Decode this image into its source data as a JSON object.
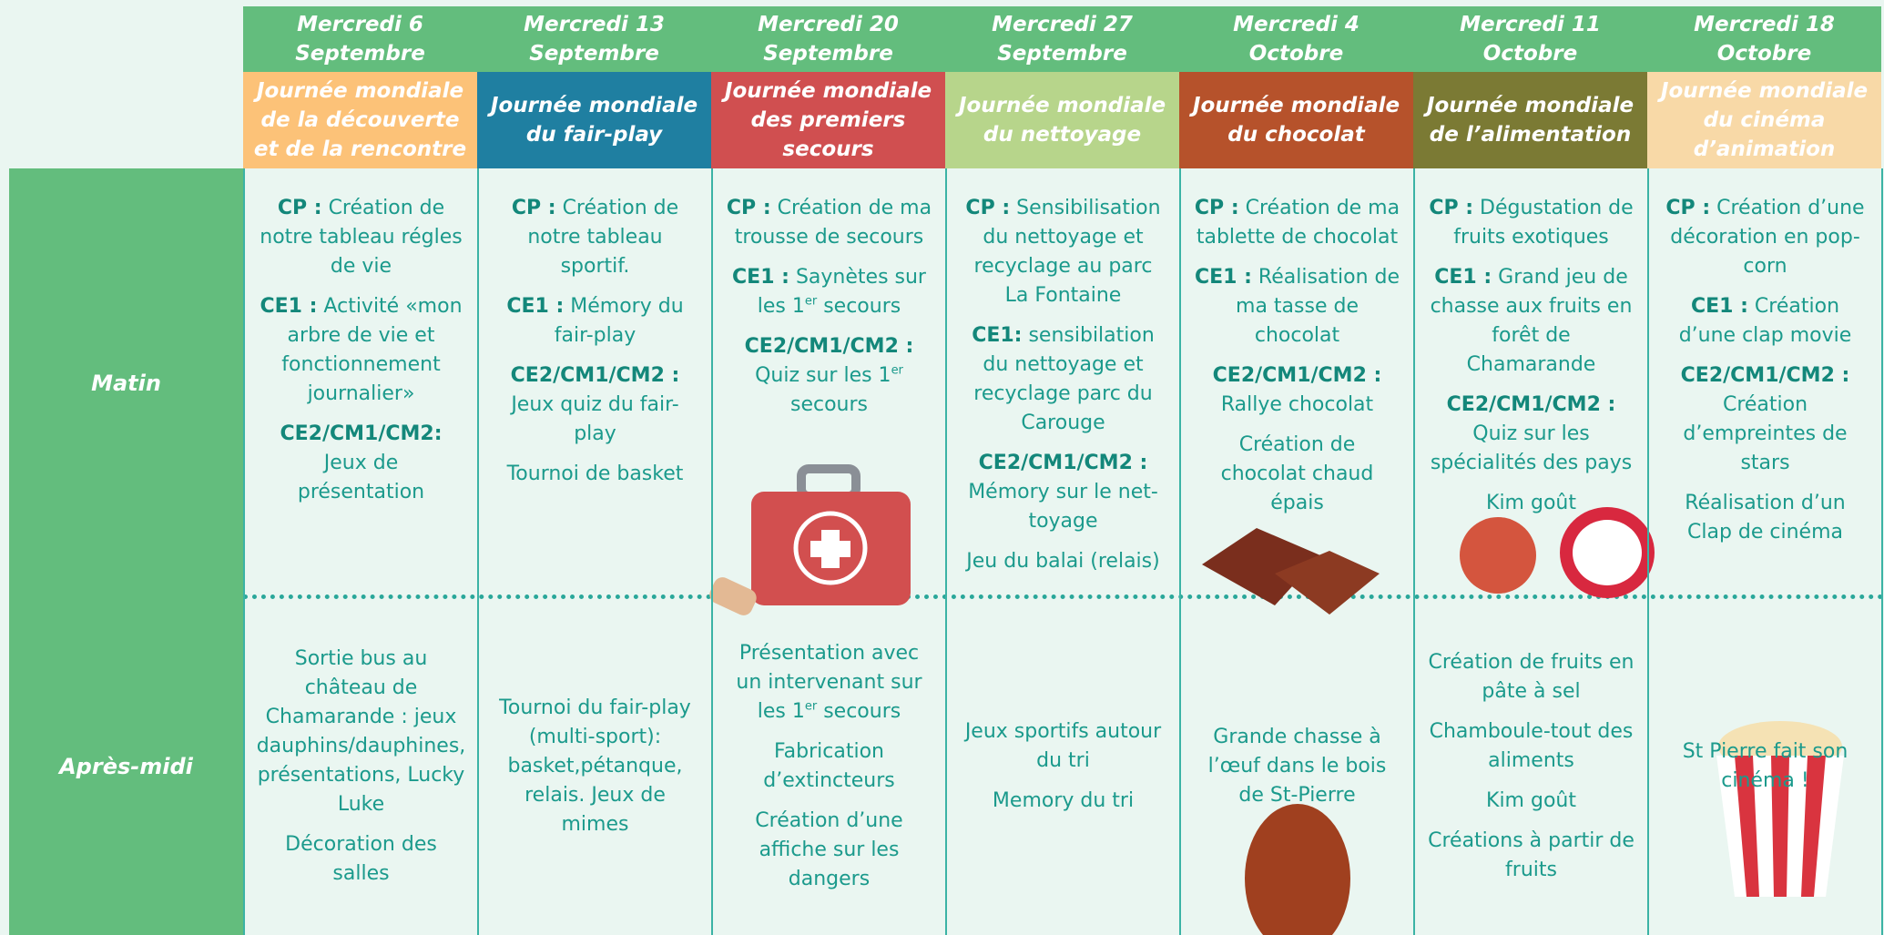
{
  "row_labels": [
    "Matin",
    "Après-midi"
  ],
  "columns": [
    {
      "date": [
        "Mercredi 6",
        "Septembre"
      ],
      "theme": "Journée mondiale de la découverte et de la rencontre",
      "theme_color": "#fcc278",
      "morning": [
        [
          {
            "text": "CP :",
            "style": "bold"
          },
          {
            "text": " Création de notre tableau régles de vie"
          }
        ],
        [
          {
            "text": "CE1 :",
            "style": "bold"
          },
          {
            "text": "  Activité «mon arbre de vie et fonctionnement journalier»"
          }
        ],
        [
          {
            "text": "CE2/CM1/CM2:",
            "style": "bold"
          },
          {
            "text": "  Jeux de présentation"
          }
        ]
      ],
      "afternoon": [
        [
          {
            "text": "Sortie bus au château de Chamarande : jeux dauphins/dauphines, présentations, Lucky Luke"
          }
        ],
        [
          {
            "text": "Décoration des salles"
          }
        ]
      ]
    },
    {
      "date": [
        "Mercredi 13",
        "Septembre"
      ],
      "theme": "Journée mondiale du fair-play",
      "theme_color": "#1f7fa1",
      "morning": [
        [
          {
            "text": "CP :",
            "style": "bold"
          },
          {
            "text": " Création de notre tableau sportif."
          }
        ],
        [
          {
            "text": "CE1 :",
            "style": "bold"
          },
          {
            "text": " Mémory du fair-play"
          }
        ],
        [
          {
            "text": "CE2/CM1/CM2 :",
            "style": "bold"
          },
          {
            "text": " Jeux quiz du fair-play"
          }
        ],
        [
          {
            "text": "Tournoi de basket"
          }
        ]
      ],
      "afternoon": [
        [
          {
            "text": "Tournoi du fair-play (multi-sport): basket,pétanque, relais. Jeux de mimes"
          }
        ]
      ]
    },
    {
      "date": [
        "Mercredi 20",
        "Septembre"
      ],
      "theme": "Journée mondiale des premiers secours",
      "theme_color": "#d04f50",
      "morning": [
        [
          {
            "text": "CP :",
            "style": "bold"
          },
          {
            "text": " Création de ma trousse de secours"
          }
        ],
        [
          {
            "text": "CE1 :",
            "style": "bold"
          },
          {
            "text": " Saynètes sur les 1"
          },
          {
            "text": "er",
            "style": "sup"
          },
          {
            "text": " secours"
          }
        ],
        [
          {
            "text": "CE2/CM1/CM2 :",
            "style": "bold"
          },
          {
            "text": " Quiz sur les 1"
          },
          {
            "text": "er",
            "style": "sup"
          },
          {
            "text": " secours"
          }
        ]
      ],
      "afternoon": [
        [
          {
            "text": "Présentation avec un intervenant sur les 1"
          },
          {
            "text": "er",
            "style": "sup"
          },
          {
            "text": " secours"
          }
        ],
        [
          {
            "text": "Fabrication d’extincteurs"
          }
        ],
        [
          {
            "text": "Création d’une affiche sur les dangers"
          }
        ]
      ]
    },
    {
      "date": [
        "Mercredi 27",
        "Septembre"
      ],
      "theme": "Journée mondiale du nettoyage",
      "theme_color": "#b7d58b",
      "morning": [
        [
          {
            "text": "CP :",
            "style": "bold"
          },
          {
            "text": " Sensibilisation du nettoyage et recyclage au parc La Fontaine"
          }
        ],
        [
          {
            "text": "CE1:",
            "style": "bold"
          },
          {
            "text": " sensibilation du nettoyage et recyclage parc du Carouge"
          }
        ],
        [
          {
            "text": "CE2/CM1/CM2 :",
            "style": "bold"
          },
          {
            "text": " Mémory sur le net-toyage"
          }
        ],
        [
          {
            "text": "Jeu du balai (relais)"
          }
        ]
      ],
      "afternoon": [
        [
          {
            "text": "Jeux sportifs autour du tri"
          }
        ],
        [
          {
            "text": "Memory du tri"
          }
        ]
      ]
    },
    {
      "date": [
        "Mercredi 4",
        "Octobre"
      ],
      "theme": "Journée mondiale du chocolat",
      "theme_color": "#b6522b",
      "morning": [
        [
          {
            "text": "CP :",
            "style": "bold"
          },
          {
            "text": " Création de ma tablette de chocolat"
          }
        ],
        [
          {
            "text": "CE1 :",
            "style": "bold"
          },
          {
            "text": " Réalisation de ma tasse de chocolat"
          }
        ],
        [
          {
            "text": "CE2/CM1/CM2 :",
            "style": "bold"
          },
          {
            "text": " Rallye chocolat"
          }
        ],
        [
          {
            "text": "Création de chocolat chaud épais"
          }
        ]
      ],
      "afternoon": [
        [
          {
            "text": "Grande chasse à l’œuf dans le bois de St-Pierre"
          }
        ]
      ]
    },
    {
      "date": [
        "Mercredi 11",
        "Octobre"
      ],
      "theme": "Journée mondiale de l’alimentation",
      "theme_color": "#7b7a34",
      "morning": [
        [
          {
            "text": "CP :",
            "style": "bold"
          },
          {
            "text": " Dégustation de fruits exotiques"
          }
        ],
        [
          {
            "text": "CE1 :",
            "style": "bold"
          },
          {
            "text": " Grand jeu de chasse aux fruits en forêt de Chamarande"
          }
        ],
        [
          {
            "text": "CE2/CM1/CM2 :",
            "style": "bold"
          },
          {
            "text": " Quiz sur les spécialités des pays"
          }
        ],
        [
          {
            "text": "Kim goût"
          }
        ]
      ],
      "afternoon": [
        [
          {
            "text": "Création de fruits  en pâte à sel"
          }
        ],
        [
          {
            "text": "Chamboule-tout des aliments"
          }
        ],
        [
          {
            "text": "Kim goût"
          }
        ],
        [
          {
            "text": "Créations à partir de fruits"
          }
        ]
      ]
    },
    {
      "date": [
        "Mercredi 18",
        "Octobre"
      ],
      "theme": "Journée mondiale du cinéma d’animation",
      "theme_color": "#f8d9a7",
      "morning": [
        [
          {
            "text": "CP :",
            "style": "bold"
          },
          {
            "text": " Création d’une décoration en pop- corn"
          }
        ],
        [
          {
            "text": "CE1 :",
            "style": "bold"
          },
          {
            "text": " Création d’une clap movie"
          }
        ],
        [
          {
            "text": "CE2/CM1/CM2 :",
            "style": "bold"
          },
          {
            "text": " Création d’empreintes de stars"
          }
        ],
        [
          {
            "text": "Réalisation d’un Clap de cinéma"
          }
        ]
      ],
      "afternoon": [
        [
          {
            "text": "St Pierre fait son cinéma !"
          }
        ]
      ]
    }
  ]
}
